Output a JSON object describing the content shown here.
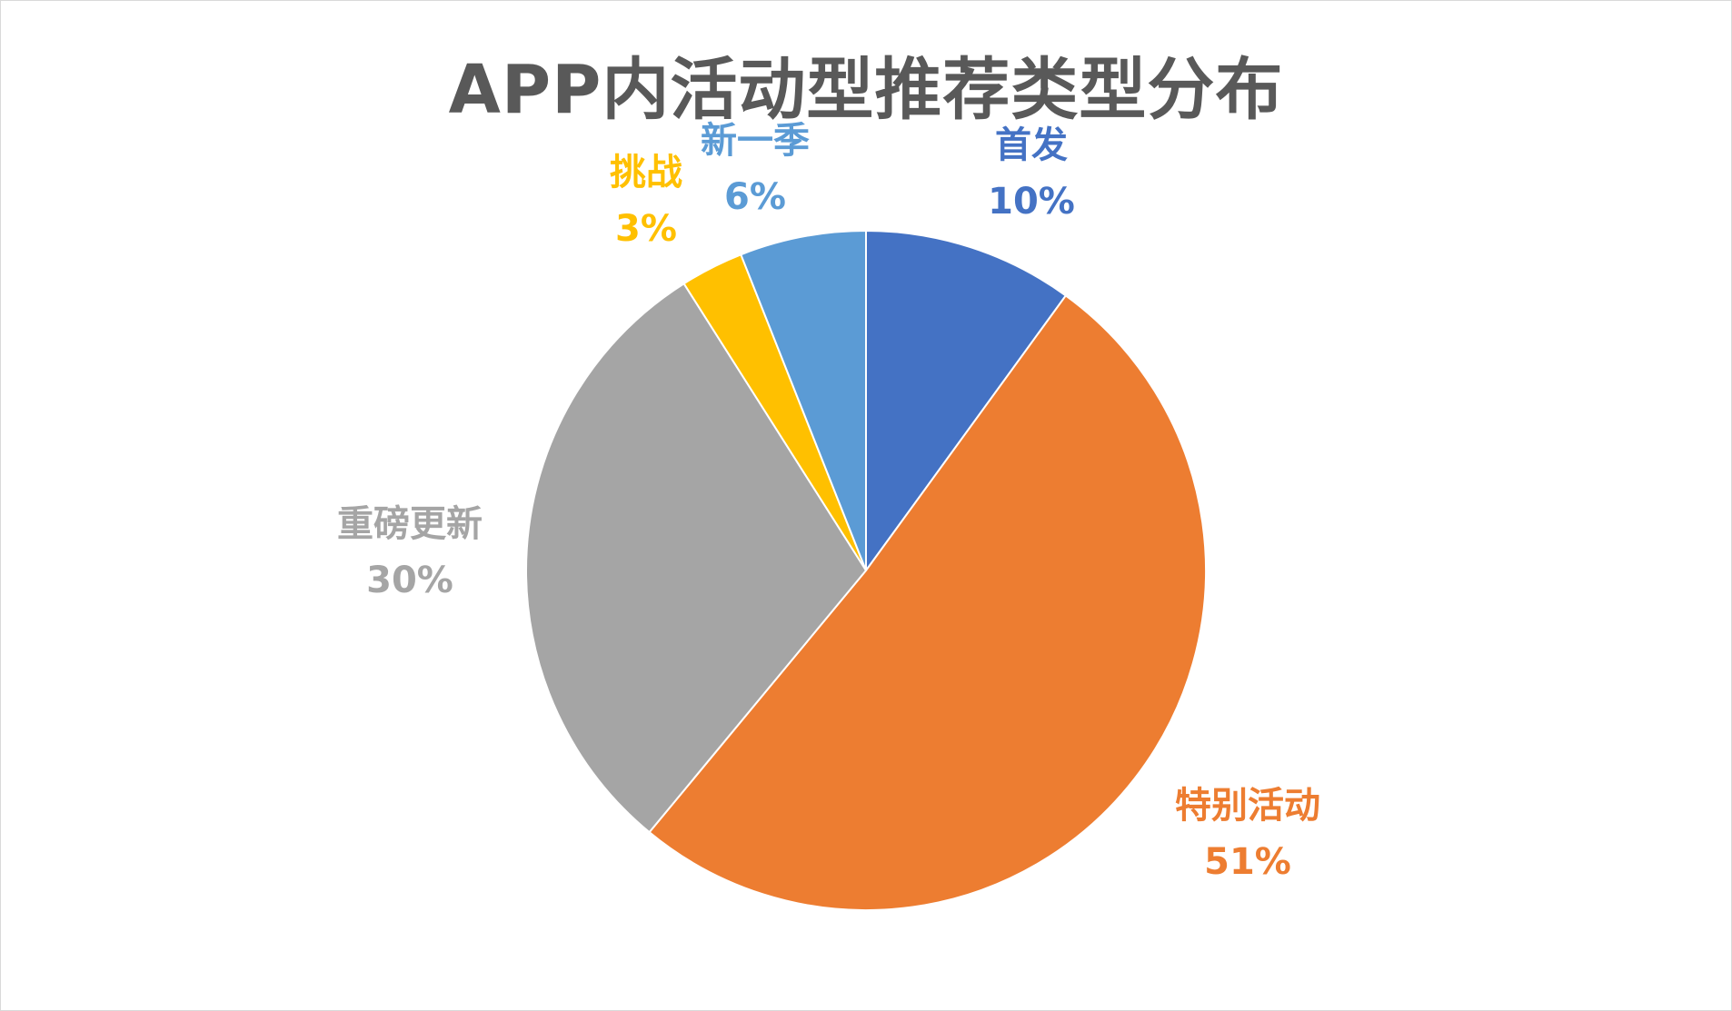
{
  "chart_data": {
    "type": "pie",
    "title": "APP内活动型推荐类型分布",
    "start_angle_deg": 0,
    "direction": "clockwise",
    "slices": [
      {
        "name": "首发",
        "value": 10,
        "label": "10%",
        "color": "#4472C4"
      },
      {
        "name": "特别活动",
        "value": 51,
        "label": "51%",
        "color": "#ED7D31"
      },
      {
        "name": "重磅更新",
        "value": 30,
        "label": "30%",
        "color": "#A5A5A5"
      },
      {
        "name": "挑战",
        "value": 3,
        "label": "3%",
        "color": "#FFC000"
      },
      {
        "name": "新一季",
        "value": 6,
        "label": "6%",
        "color": "#5B9BD5"
      }
    ],
    "legend": "none"
  }
}
